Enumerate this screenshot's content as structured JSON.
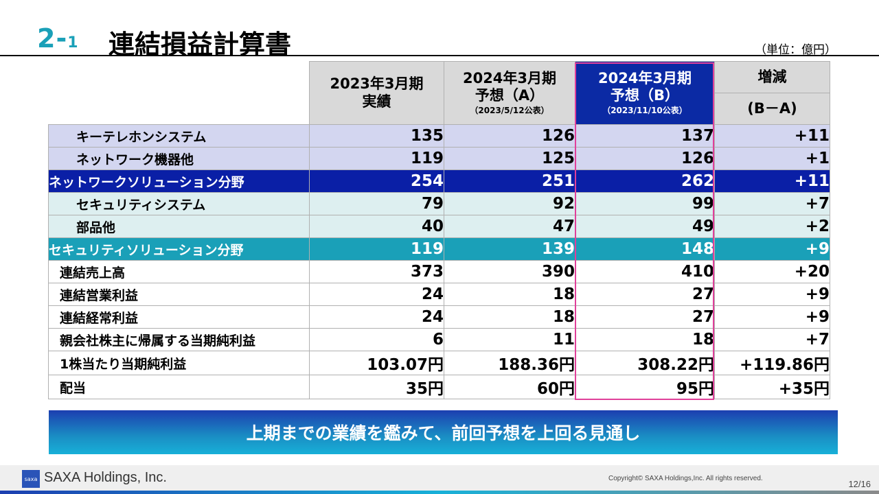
{
  "header": {
    "section_number": "2-",
    "section_sub": "1",
    "title": "連結損益計算書",
    "unit": "（単位：億円）"
  },
  "table": {
    "columns": [
      {
        "line1": "2023年3月期",
        "line2": "実績",
        "note": ""
      },
      {
        "line1": "2024年3月期",
        "line2": "予想（A）",
        "note": "（2023/5/12公表）"
      },
      {
        "line1": "2024年3月期",
        "line2": "予想（B）",
        "note": "（2023/11/10公表）"
      },
      {
        "line1": "増減",
        "line2": "(B－A)",
        "note": ""
      }
    ],
    "rows": [
      {
        "label": "キーテレホンシステム",
        "style": "lav",
        "indent": true,
        "values": [
          "135",
          "126",
          "137",
          "+11"
        ]
      },
      {
        "label": "ネットワーク機器他",
        "style": "lav",
        "indent": true,
        "values": [
          "119",
          "125",
          "126",
          "+1"
        ]
      },
      {
        "label": "ネットワークソリューション分野",
        "style": "navy",
        "indent": false,
        "values": [
          "254",
          "251",
          "262",
          "+11"
        ]
      },
      {
        "label": "セキュリティシステム",
        "style": "lblue",
        "indent": true,
        "values": [
          "79",
          "92",
          "99",
          "+7"
        ]
      },
      {
        "label": "部品他",
        "style": "lblue",
        "indent": true,
        "values": [
          "40",
          "47",
          "49",
          "+2"
        ]
      },
      {
        "label": "セキュリティソリューション分野",
        "style": "teal",
        "indent": false,
        "values": [
          "119",
          "139",
          "148",
          "+9"
        ]
      },
      {
        "label": "連結売上高",
        "style": "white",
        "indent": false,
        "values": [
          "373",
          "390",
          "410",
          "+20"
        ]
      },
      {
        "label": "連結営業利益",
        "style": "white",
        "indent": false,
        "values": [
          "24",
          "18",
          "27",
          "+9"
        ]
      },
      {
        "label": "連結経常利益",
        "style": "white",
        "indent": false,
        "values": [
          "24",
          "18",
          "27",
          "+9"
        ]
      },
      {
        "label": "親会社株主に帰属する当期純利益",
        "style": "white",
        "indent": false,
        "values": [
          "6",
          "11",
          "18",
          "+7"
        ]
      },
      {
        "label": "1株当たり当期純利益",
        "style": "white",
        "indent": false,
        "values": [
          "103.07円",
          "188.36円",
          "308.22円",
          "+119.86円"
        ]
      },
      {
        "label": "配当",
        "style": "white",
        "indent": false,
        "values": [
          "35円",
          "60円",
          "95円",
          "+35円"
        ]
      }
    ]
  },
  "banner": {
    "text": "上期までの業績を鑑みて、前回予想を上回る見通し"
  },
  "footer": {
    "logo_text": "saxa",
    "company": "SAXA Holdings, Inc.",
    "copyright": "Copyright© SAXA Holdings,Inc. All rights reserved.",
    "page": "12/16"
  }
}
